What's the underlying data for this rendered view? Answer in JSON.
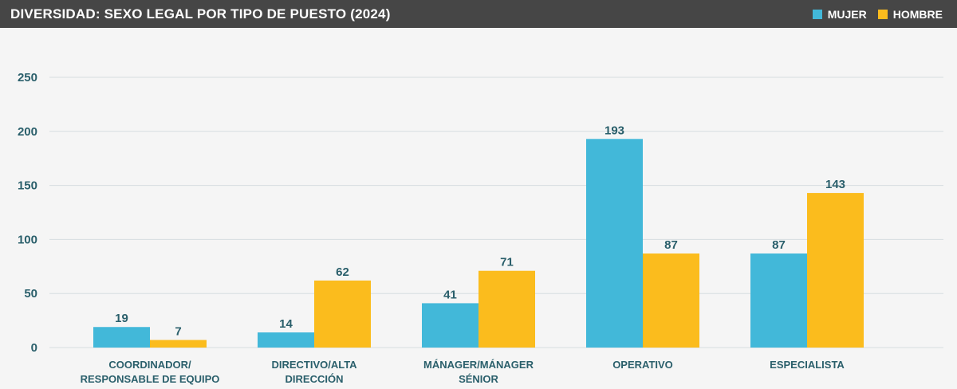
{
  "header": {
    "title": "DIVERSIDAD: SEXO LEGAL POR TIPO DE PUESTO (2024)"
  },
  "chart_data": {
    "type": "bar",
    "title": "DIVERSIDAD: SEXO LEGAL POR TIPO DE PUESTO (2024)",
    "categories": [
      [
        "COORDINADOR/",
        "RESPONSABLE DE EQUIPO"
      ],
      [
        "DIRECTIVO/ALTA",
        "DIRECCIÓN"
      ],
      [
        "MÁNAGER/MÁNAGER",
        "SÉNIOR"
      ],
      [
        "OPERATIVO"
      ],
      [
        "ESPECIALISTA"
      ]
    ],
    "series": [
      {
        "name": "MUJER",
        "color": "#42b8d9",
        "values": [
          19,
          14,
          41,
          193,
          87
        ]
      },
      {
        "name": "HOMBRE",
        "color": "#fbbc1d",
        "values": [
          7,
          62,
          71,
          87,
          143
        ]
      }
    ],
    "yticks": [
      0,
      50,
      100,
      150,
      200,
      250
    ],
    "ylim": [
      0,
      250
    ],
    "grid": true,
    "legend_position": "top-right"
  }
}
